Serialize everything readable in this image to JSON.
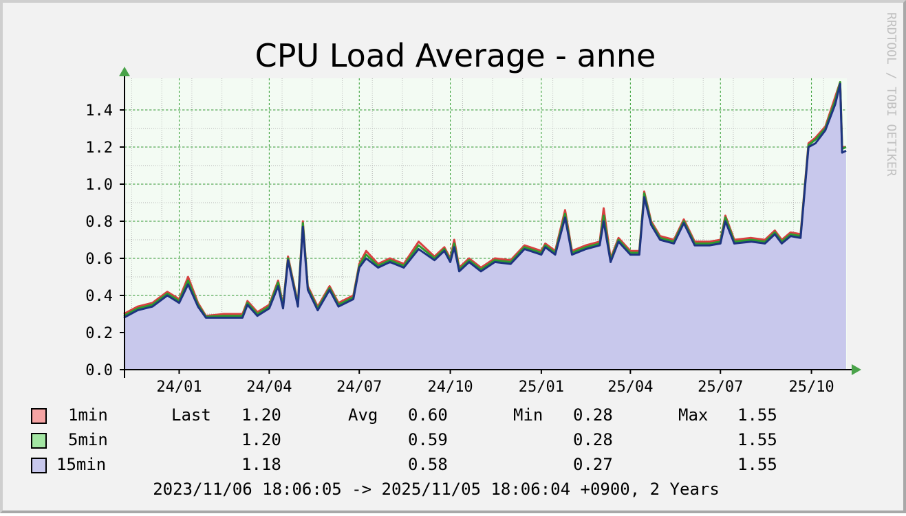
{
  "chart_data": {
    "type": "area",
    "title": "CPU Load Average - anne",
    "watermark": "RRDTOOL / TOBI OETIKER",
    "time_range": {
      "start": "2023-11-06T18:06:05+09:00",
      "end": "2025-11-05T18:06:04+09:00"
    },
    "x_ticks": [
      {
        "label": "24/01",
        "date": "2024-01-01"
      },
      {
        "label": "24/04",
        "date": "2024-04-01"
      },
      {
        "label": "24/07",
        "date": "2024-07-01"
      },
      {
        "label": "24/10",
        "date": "2024-10-01"
      },
      {
        "label": "25/01",
        "date": "2025-01-01"
      },
      {
        "label": "25/04",
        "date": "2025-04-01"
      },
      {
        "label": "25/07",
        "date": "2025-07-01"
      },
      {
        "label": "25/10",
        "date": "2025-10-01"
      }
    ],
    "y_ticks": [
      "0.0",
      "0.2",
      "0.4",
      "0.6",
      "0.8",
      "1.0",
      "1.2",
      "1.4"
    ],
    "ylim": [
      0,
      1.55
    ],
    "grid": true,
    "colors": {
      "plot_background": "#f3fbf3",
      "major_grid": "#2e9a2e",
      "minor_grid": "#b4b4b4",
      "axis": "#000000",
      "arrow": "#4aa34a",
      "area_fill": "#c8c8ec",
      "line_1min": "#d84040",
      "line_5min": "#2e9a2e",
      "line_15min": "#1e3480"
    },
    "series": [
      {
        "name": "1min",
        "swatch": "#f5a3a3",
        "line": "#d84040",
        "last": "1.20",
        "avg": "0.60",
        "min": "0.28",
        "max": "1.55",
        "points": [
          [
            "2023-11-06",
            0.3
          ],
          [
            "2023-11-20",
            0.34
          ],
          [
            "2023-12-05",
            0.36
          ],
          [
            "2023-12-20",
            0.42
          ],
          [
            "2024-01-01",
            0.38
          ],
          [
            "2024-01-10",
            0.5
          ],
          [
            "2024-01-20",
            0.36
          ],
          [
            "2024-01-28",
            0.29
          ],
          [
            "2024-02-15",
            0.3
          ],
          [
            "2024-03-05",
            0.3
          ],
          [
            "2024-03-10",
            0.37
          ],
          [
            "2024-03-20",
            0.31
          ],
          [
            "2024-04-01",
            0.35
          ],
          [
            "2024-04-10",
            0.48
          ],
          [
            "2024-04-15",
            0.35
          ],
          [
            "2024-04-20",
            0.61
          ],
          [
            "2024-04-30",
            0.36
          ],
          [
            "2024-05-05",
            0.8
          ],
          [
            "2024-05-10",
            0.45
          ],
          [
            "2024-05-20",
            0.34
          ],
          [
            "2024-06-01",
            0.45
          ],
          [
            "2024-06-10",
            0.36
          ],
          [
            "2024-06-25",
            0.4
          ],
          [
            "2024-07-01",
            0.57
          ],
          [
            "2024-07-08",
            0.64
          ],
          [
            "2024-07-20",
            0.57
          ],
          [
            "2024-08-01",
            0.6
          ],
          [
            "2024-08-15",
            0.57
          ],
          [
            "2024-08-30",
            0.69
          ],
          [
            "2024-09-15",
            0.61
          ],
          [
            "2024-09-25",
            0.66
          ],
          [
            "2024-10-01",
            0.6
          ],
          [
            "2024-10-05",
            0.7
          ],
          [
            "2024-10-10",
            0.55
          ],
          [
            "2024-10-20",
            0.6
          ],
          [
            "2024-11-01",
            0.55
          ],
          [
            "2024-11-15",
            0.6
          ],
          [
            "2024-12-01",
            0.59
          ],
          [
            "2024-12-15",
            0.67
          ],
          [
            "2025-01-01",
            0.64
          ],
          [
            "2025-01-05",
            0.68
          ],
          [
            "2025-01-15",
            0.64
          ],
          [
            "2025-01-25",
            0.86
          ],
          [
            "2025-02-01",
            0.64
          ],
          [
            "2025-02-15",
            0.67
          ],
          [
            "2025-03-01",
            0.69
          ],
          [
            "2025-03-05",
            0.87
          ],
          [
            "2025-03-12",
            0.6
          ],
          [
            "2025-03-20",
            0.71
          ],
          [
            "2025-04-01",
            0.64
          ],
          [
            "2025-04-10",
            0.64
          ],
          [
            "2025-04-15",
            0.96
          ],
          [
            "2025-04-22",
            0.8
          ],
          [
            "2025-05-01",
            0.72
          ],
          [
            "2025-05-15",
            0.7
          ],
          [
            "2025-05-25",
            0.81
          ],
          [
            "2025-06-05",
            0.69
          ],
          [
            "2025-06-20",
            0.69
          ],
          [
            "2025-07-01",
            0.7
          ],
          [
            "2025-07-06",
            0.83
          ],
          [
            "2025-07-15",
            0.7
          ],
          [
            "2025-08-01",
            0.71
          ],
          [
            "2025-08-15",
            0.7
          ],
          [
            "2025-08-25",
            0.75
          ],
          [
            "2025-09-01",
            0.7
          ],
          [
            "2025-09-10",
            0.74
          ],
          [
            "2025-09-20",
            0.73
          ],
          [
            "2025-09-28",
            1.22
          ],
          [
            "2025-10-05",
            1.25
          ],
          [
            "2025-10-15",
            1.31
          ],
          [
            "2025-10-25",
            1.47
          ],
          [
            "2025-10-30",
            1.55
          ],
          [
            "2025-11-01",
            1.2
          ],
          [
            "2025-11-05",
            1.2
          ]
        ]
      },
      {
        "name": "5min",
        "swatch": "#a3e6a3",
        "line": "#2e9a2e",
        "last": "1.20",
        "avg": "0.59",
        "min": "0.28",
        "max": "1.55",
        "points": [
          [
            "2023-11-06",
            0.29
          ],
          [
            "2023-11-20",
            0.33
          ],
          [
            "2023-12-05",
            0.35
          ],
          [
            "2023-12-20",
            0.41
          ],
          [
            "2024-01-01",
            0.37
          ],
          [
            "2024-01-10",
            0.48
          ],
          [
            "2024-01-20",
            0.35
          ],
          [
            "2024-01-28",
            0.285
          ],
          [
            "2024-02-15",
            0.29
          ],
          [
            "2024-03-05",
            0.29
          ],
          [
            "2024-03-10",
            0.36
          ],
          [
            "2024-03-20",
            0.3
          ],
          [
            "2024-04-01",
            0.34
          ],
          [
            "2024-04-10",
            0.47
          ],
          [
            "2024-04-15",
            0.34
          ],
          [
            "2024-04-20",
            0.6
          ],
          [
            "2024-04-30",
            0.35
          ],
          [
            "2024-05-05",
            0.79
          ],
          [
            "2024-05-10",
            0.44
          ],
          [
            "2024-05-20",
            0.33
          ],
          [
            "2024-06-01",
            0.44
          ],
          [
            "2024-06-10",
            0.35
          ],
          [
            "2024-06-25",
            0.39
          ],
          [
            "2024-07-01",
            0.56
          ],
          [
            "2024-07-08",
            0.62
          ],
          [
            "2024-07-20",
            0.56
          ],
          [
            "2024-08-01",
            0.59
          ],
          [
            "2024-08-15",
            0.56
          ],
          [
            "2024-08-30",
            0.67
          ],
          [
            "2024-09-15",
            0.6
          ],
          [
            "2024-09-25",
            0.65
          ],
          [
            "2024-10-01",
            0.59
          ],
          [
            "2024-10-05",
            0.68
          ],
          [
            "2024-10-10",
            0.54
          ],
          [
            "2024-10-20",
            0.59
          ],
          [
            "2024-11-01",
            0.54
          ],
          [
            "2024-11-15",
            0.59
          ],
          [
            "2024-12-01",
            0.58
          ],
          [
            "2024-12-15",
            0.66
          ],
          [
            "2025-01-01",
            0.63
          ],
          [
            "2025-01-05",
            0.67
          ],
          [
            "2025-01-15",
            0.63
          ],
          [
            "2025-01-25",
            0.84
          ],
          [
            "2025-02-01",
            0.63
          ],
          [
            "2025-02-15",
            0.66
          ],
          [
            "2025-03-01",
            0.68
          ],
          [
            "2025-03-05",
            0.83
          ],
          [
            "2025-03-12",
            0.59
          ],
          [
            "2025-03-20",
            0.7
          ],
          [
            "2025-04-01",
            0.63
          ],
          [
            "2025-04-10",
            0.63
          ],
          [
            "2025-04-15",
            0.95
          ],
          [
            "2025-04-22",
            0.79
          ],
          [
            "2025-05-01",
            0.71
          ],
          [
            "2025-05-15",
            0.69
          ],
          [
            "2025-05-25",
            0.8
          ],
          [
            "2025-06-05",
            0.68
          ],
          [
            "2025-06-20",
            0.68
          ],
          [
            "2025-07-01",
            0.69
          ],
          [
            "2025-07-06",
            0.82
          ],
          [
            "2025-07-15",
            0.69
          ],
          [
            "2025-08-01",
            0.7
          ],
          [
            "2025-08-15",
            0.69
          ],
          [
            "2025-08-25",
            0.74
          ],
          [
            "2025-09-01",
            0.69
          ],
          [
            "2025-09-10",
            0.73
          ],
          [
            "2025-09-20",
            0.72
          ],
          [
            "2025-09-28",
            1.21
          ],
          [
            "2025-10-05",
            1.24
          ],
          [
            "2025-10-15",
            1.3
          ],
          [
            "2025-10-25",
            1.45
          ],
          [
            "2025-10-30",
            1.55
          ],
          [
            "2025-11-01",
            1.19
          ],
          [
            "2025-11-05",
            1.2
          ]
        ]
      },
      {
        "name": "15min",
        "swatch": "#c8c8ec",
        "line": "#1e3480",
        "last": "1.18",
        "avg": "0.58",
        "min": "0.27",
        "max": "1.55",
        "points": [
          [
            "2023-11-06",
            0.28
          ],
          [
            "2023-11-20",
            0.32
          ],
          [
            "2023-12-05",
            0.34
          ],
          [
            "2023-12-20",
            0.4
          ],
          [
            "2024-01-01",
            0.36
          ],
          [
            "2024-01-10",
            0.46
          ],
          [
            "2024-01-20",
            0.34
          ],
          [
            "2024-01-28",
            0.28
          ],
          [
            "2024-02-15",
            0.28
          ],
          [
            "2024-03-05",
            0.28
          ],
          [
            "2024-03-10",
            0.35
          ],
          [
            "2024-03-20",
            0.29
          ],
          [
            "2024-04-01",
            0.33
          ],
          [
            "2024-04-10",
            0.45
          ],
          [
            "2024-04-15",
            0.33
          ],
          [
            "2024-04-20",
            0.59
          ],
          [
            "2024-04-30",
            0.34
          ],
          [
            "2024-05-05",
            0.77
          ],
          [
            "2024-05-10",
            0.43
          ],
          [
            "2024-05-20",
            0.32
          ],
          [
            "2024-06-01",
            0.43
          ],
          [
            "2024-06-10",
            0.34
          ],
          [
            "2024-06-25",
            0.38
          ],
          [
            "2024-07-01",
            0.55
          ],
          [
            "2024-07-08",
            0.6
          ],
          [
            "2024-07-20",
            0.55
          ],
          [
            "2024-08-01",
            0.58
          ],
          [
            "2024-08-15",
            0.55
          ],
          [
            "2024-08-30",
            0.65
          ],
          [
            "2024-09-15",
            0.59
          ],
          [
            "2024-09-25",
            0.64
          ],
          [
            "2024-10-01",
            0.58
          ],
          [
            "2024-10-05",
            0.66
          ],
          [
            "2024-10-10",
            0.53
          ],
          [
            "2024-10-20",
            0.58
          ],
          [
            "2024-11-01",
            0.53
          ],
          [
            "2024-11-15",
            0.58
          ],
          [
            "2024-12-01",
            0.57
          ],
          [
            "2024-12-15",
            0.65
          ],
          [
            "2025-01-01",
            0.62
          ],
          [
            "2025-01-05",
            0.66
          ],
          [
            "2025-01-15",
            0.62
          ],
          [
            "2025-01-25",
            0.82
          ],
          [
            "2025-02-01",
            0.62
          ],
          [
            "2025-02-15",
            0.65
          ],
          [
            "2025-03-01",
            0.67
          ],
          [
            "2025-03-05",
            0.8
          ],
          [
            "2025-03-12",
            0.58
          ],
          [
            "2025-03-20",
            0.69
          ],
          [
            "2025-04-01",
            0.62
          ],
          [
            "2025-04-10",
            0.62
          ],
          [
            "2025-04-15",
            0.93
          ],
          [
            "2025-04-22",
            0.78
          ],
          [
            "2025-05-01",
            0.7
          ],
          [
            "2025-05-15",
            0.68
          ],
          [
            "2025-05-25",
            0.79
          ],
          [
            "2025-06-05",
            0.67
          ],
          [
            "2025-06-20",
            0.67
          ],
          [
            "2025-07-01",
            0.68
          ],
          [
            "2025-07-06",
            0.8
          ],
          [
            "2025-07-15",
            0.68
          ],
          [
            "2025-08-01",
            0.69
          ],
          [
            "2025-08-15",
            0.68
          ],
          [
            "2025-08-25",
            0.73
          ],
          [
            "2025-09-01",
            0.68
          ],
          [
            "2025-09-10",
            0.72
          ],
          [
            "2025-09-20",
            0.71
          ],
          [
            "2025-09-28",
            1.2
          ],
          [
            "2025-10-05",
            1.22
          ],
          [
            "2025-10-15",
            1.29
          ],
          [
            "2025-10-25",
            1.43
          ],
          [
            "2025-10-30",
            1.54
          ],
          [
            "2025-11-01",
            1.17
          ],
          [
            "2025-11-05",
            1.18
          ]
        ]
      }
    ],
    "legend_headers": {
      "last": "Last",
      "avg": "Avg",
      "min": "Min",
      "max": "Max"
    },
    "footer": "2023/11/06 18:06:05 -> 2025/11/05 18:06:04 +0900, 2 Years"
  }
}
